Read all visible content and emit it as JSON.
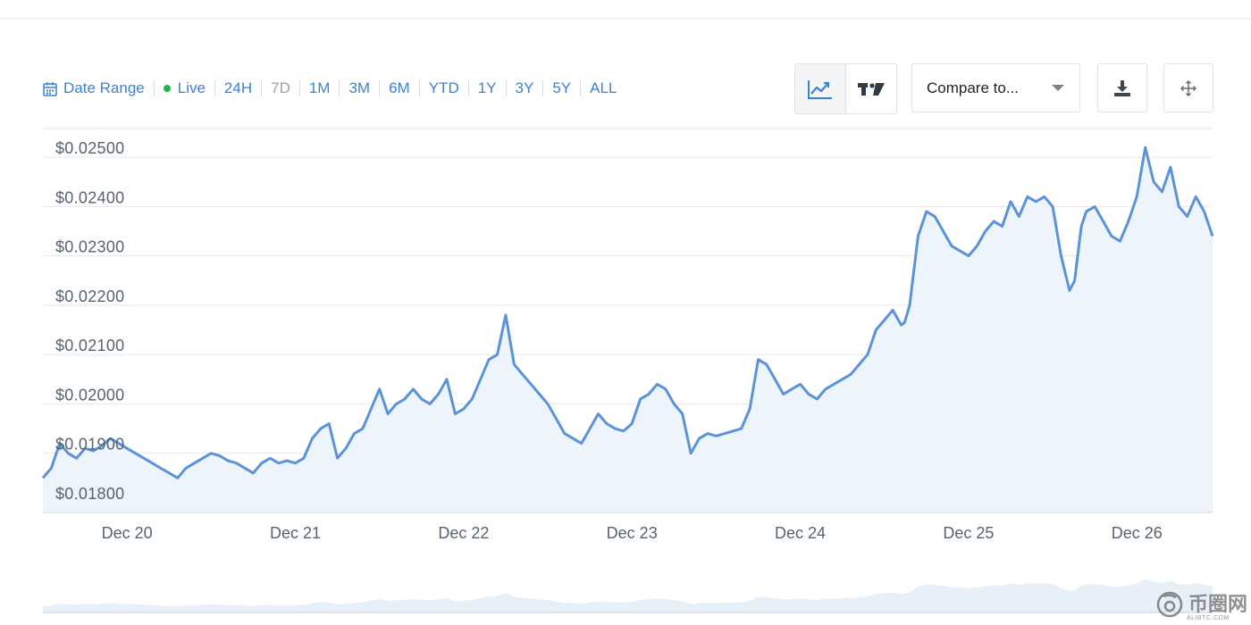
{
  "toolbar": {
    "date_range": "Date Range",
    "live": "Live",
    "ranges": [
      "24H",
      "7D",
      "1M",
      "3M",
      "6M",
      "YTD",
      "1Y",
      "3Y",
      "5Y",
      "ALL"
    ],
    "disabled_range": "7D",
    "compare_placeholder": "Compare to..."
  },
  "icons": {
    "calendar": "calendar-icon",
    "line_chart": "line-chart-icon",
    "tradingview": "tradingview-icon",
    "dropdown": "chevron-down-icon",
    "download": "download-icon",
    "fullscreen": "move-icon"
  },
  "colors": {
    "accent": "#3b82d6",
    "line": "#5b93d9",
    "area": "#eef4fb",
    "live": "#27b34a",
    "disabled": "#9aa3ad"
  },
  "watermark": {
    "text": "币圈网",
    "sub": "ALIBTC.COM"
  },
  "chart_data": {
    "type": "area",
    "ylim": [
      0.0178,
      0.0254
    ],
    "yticks": [
      0.018,
      0.019,
      0.02,
      0.021,
      0.022,
      0.023,
      0.024,
      0.025
    ],
    "ytick_labels": [
      "$0.01800",
      "$0.01900",
      "$0.02000",
      "$0.02100",
      "$0.02200",
      "$0.02300",
      "$0.02400",
      "$0.02500"
    ],
    "xlim": [
      19.5,
      26.45
    ],
    "xticks": [
      20,
      21,
      22,
      23,
      24,
      25,
      26
    ],
    "xtick_labels": [
      "Dec 20",
      "Dec 21",
      "Dec 22",
      "Dec 23",
      "Dec 24",
      "Dec 25",
      "Dec 26"
    ],
    "grid": true,
    "legend": "none",
    "x": [
      19.5,
      19.55,
      19.6,
      19.65,
      19.7,
      19.75,
      19.8,
      19.85,
      19.9,
      19.95,
      20.0,
      20.05,
      20.1,
      20.15,
      20.2,
      20.25,
      20.3,
      20.35,
      20.4,
      20.45,
      20.5,
      20.55,
      20.6,
      20.65,
      20.7,
      20.75,
      20.8,
      20.85,
      20.9,
      20.95,
      21.0,
      21.05,
      21.1,
      21.15,
      21.2,
      21.25,
      21.3,
      21.35,
      21.4,
      21.45,
      21.5,
      21.55,
      21.6,
      21.65,
      21.7,
      21.75,
      21.8,
      21.85,
      21.9,
      21.95,
      22.0,
      22.05,
      22.1,
      22.15,
      22.2,
      22.25,
      22.3,
      22.35,
      22.4,
      22.45,
      22.5,
      22.55,
      22.6,
      22.65,
      22.7,
      22.75,
      22.8,
      22.85,
      22.9,
      22.95,
      23.0,
      23.05,
      23.1,
      23.15,
      23.2,
      23.25,
      23.3,
      23.35,
      23.4,
      23.45,
      23.5,
      23.55,
      23.6,
      23.65,
      23.7,
      23.75,
      23.8,
      23.85,
      23.9,
      23.95,
      24.0,
      24.05,
      24.1,
      24.15,
      24.2,
      24.25,
      24.3,
      24.35,
      24.4,
      24.45,
      24.5,
      24.55,
      24.6,
      24.62,
      24.65,
      24.7,
      24.75,
      24.8,
      24.85,
      24.9,
      24.95,
      25.0,
      25.05,
      25.1,
      25.15,
      25.2,
      25.25,
      25.3,
      25.35,
      25.4,
      25.45,
      25.5,
      25.55,
      25.6,
      25.63,
      25.67,
      25.7,
      25.75,
      25.8,
      25.85,
      25.9,
      25.95,
      26.0,
      26.05,
      26.1,
      26.15,
      26.2,
      26.25,
      26.3,
      26.35,
      26.4,
      26.45
    ],
    "series": [
      {
        "values": [
          0.0185,
          0.0187,
          0.0192,
          0.019,
          0.0189,
          0.0191,
          0.01905,
          0.01915,
          0.0193,
          0.0192,
          0.0191,
          0.019,
          0.0189,
          0.0188,
          0.0187,
          0.0186,
          0.0185,
          0.0187,
          0.0188,
          0.0189,
          0.019,
          0.01895,
          0.01885,
          0.0188,
          0.0187,
          0.0186,
          0.0188,
          0.0189,
          0.0188,
          0.01885,
          0.0188,
          0.0189,
          0.0193,
          0.0195,
          0.0196,
          0.0189,
          0.0191,
          0.0194,
          0.0195,
          0.0199,
          0.0203,
          0.0198,
          0.02,
          0.0201,
          0.0203,
          0.0201,
          0.02,
          0.0202,
          0.0205,
          0.0198,
          0.0199,
          0.0201,
          0.0205,
          0.0209,
          0.021,
          0.0218,
          0.0208,
          0.0206,
          0.0204,
          0.0202,
          0.02,
          0.0197,
          0.0194,
          0.0193,
          0.0192,
          0.0195,
          0.0198,
          0.0196,
          0.0195,
          0.01945,
          0.0196,
          0.0201,
          0.0202,
          0.0204,
          0.0203,
          0.02,
          0.0198,
          0.019,
          0.0193,
          0.0194,
          0.01935,
          0.0194,
          0.01945,
          0.0195,
          0.0199,
          0.0209,
          0.0208,
          0.0205,
          0.0202,
          0.0203,
          0.0204,
          0.0202,
          0.0201,
          0.0203,
          0.0204,
          0.0205,
          0.0206,
          0.0208,
          0.021,
          0.0215,
          0.0217,
          0.0219,
          0.0216,
          0.02165,
          0.022,
          0.0234,
          0.0239,
          0.0238,
          0.0235,
          0.0232,
          0.0231,
          0.023,
          0.0232,
          0.0235,
          0.0237,
          0.0236,
          0.0241,
          0.0238,
          0.0242,
          0.0241,
          0.0242,
          0.024,
          0.023,
          0.0223,
          0.0225,
          0.0236,
          0.0239,
          0.024,
          0.0237,
          0.0234,
          0.0233,
          0.0237,
          0.0242,
          0.0252,
          0.0245,
          0.0243,
          0.0248,
          0.024,
          0.0238,
          0.0242,
          0.0239,
          0.0234
        ]
      }
    ]
  }
}
